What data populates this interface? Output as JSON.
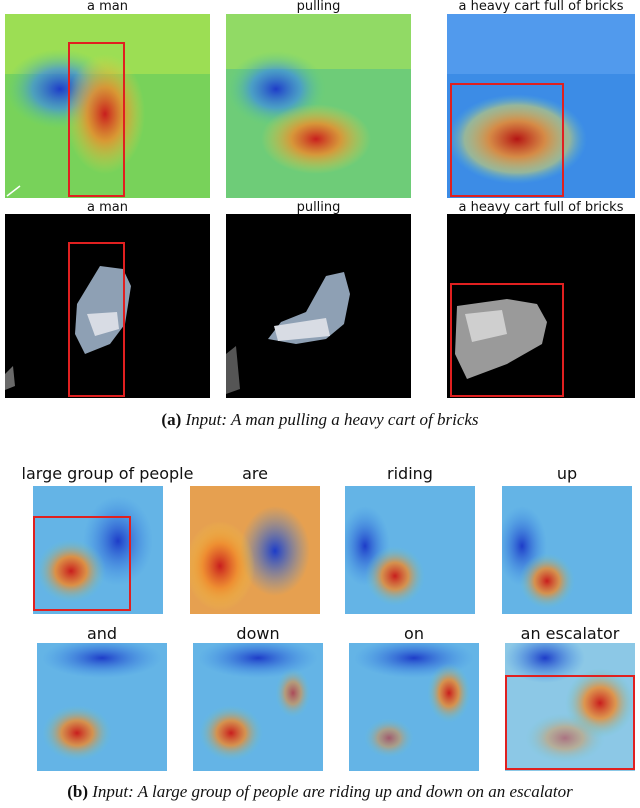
{
  "figure_a": {
    "labels": [
      "a man",
      "pulling",
      "a heavy cart full of bricks"
    ],
    "caption_tag": "(a)",
    "caption_text": "Input: A man pulling a heavy cart of bricks"
  },
  "figure_b": {
    "labels_row1": [
      "large group of people",
      "are",
      "riding",
      "up"
    ],
    "labels_row2": [
      "and",
      "down",
      "on",
      "an escalator"
    ],
    "caption_tag": "(b)",
    "caption_text": "Input: A large group of people are riding up and down on an escalator"
  },
  "colors": {
    "box": "#e02020",
    "heat_hot": "#c81e1e",
    "heat_cold": "#1e3cc8",
    "heat_mid": "#5ad282",
    "mask_bg": "#000000"
  }
}
